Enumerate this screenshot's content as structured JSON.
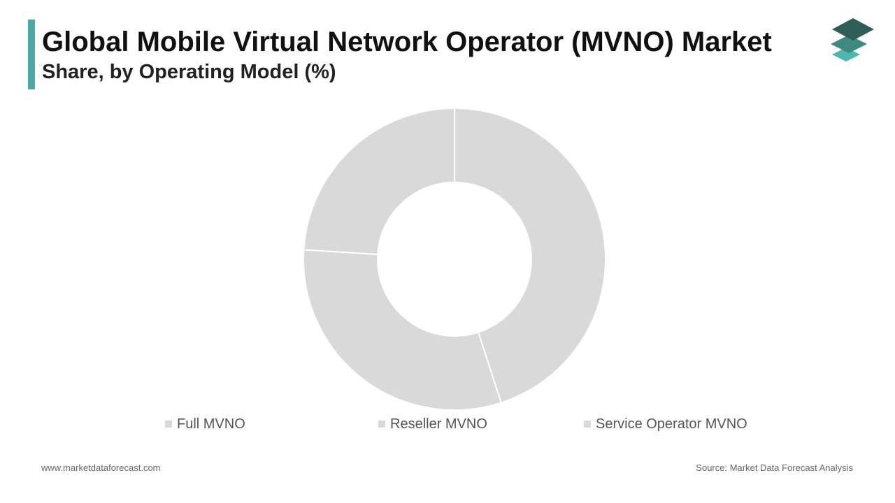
{
  "header": {
    "title": "Global Mobile Virtual Network Operator (MVNO) Market",
    "subtitle": "Share, by Operating Model (%)"
  },
  "colors": {
    "accent": "#4aa8a8",
    "slice": "#d9d9d9",
    "slice_stroke": "#ffffff",
    "logo_top": "#2f5d57",
    "logo_mid": "#3f8a80",
    "logo_bottom": "#4fb6ab"
  },
  "logo": {
    "icon": "stacked-layers-icon"
  },
  "chart_data": {
    "type": "pie",
    "variant": "donut",
    "categories": [
      "Full MVNO",
      "Reseller MVNO",
      "Service Operator MVNO"
    ],
    "values": [
      45,
      31,
      24
    ],
    "legend_position": "bottom"
  },
  "footer": {
    "website": "www.marketdataforecast.com",
    "source": "Source: Market Data Forecast Analysis"
  }
}
